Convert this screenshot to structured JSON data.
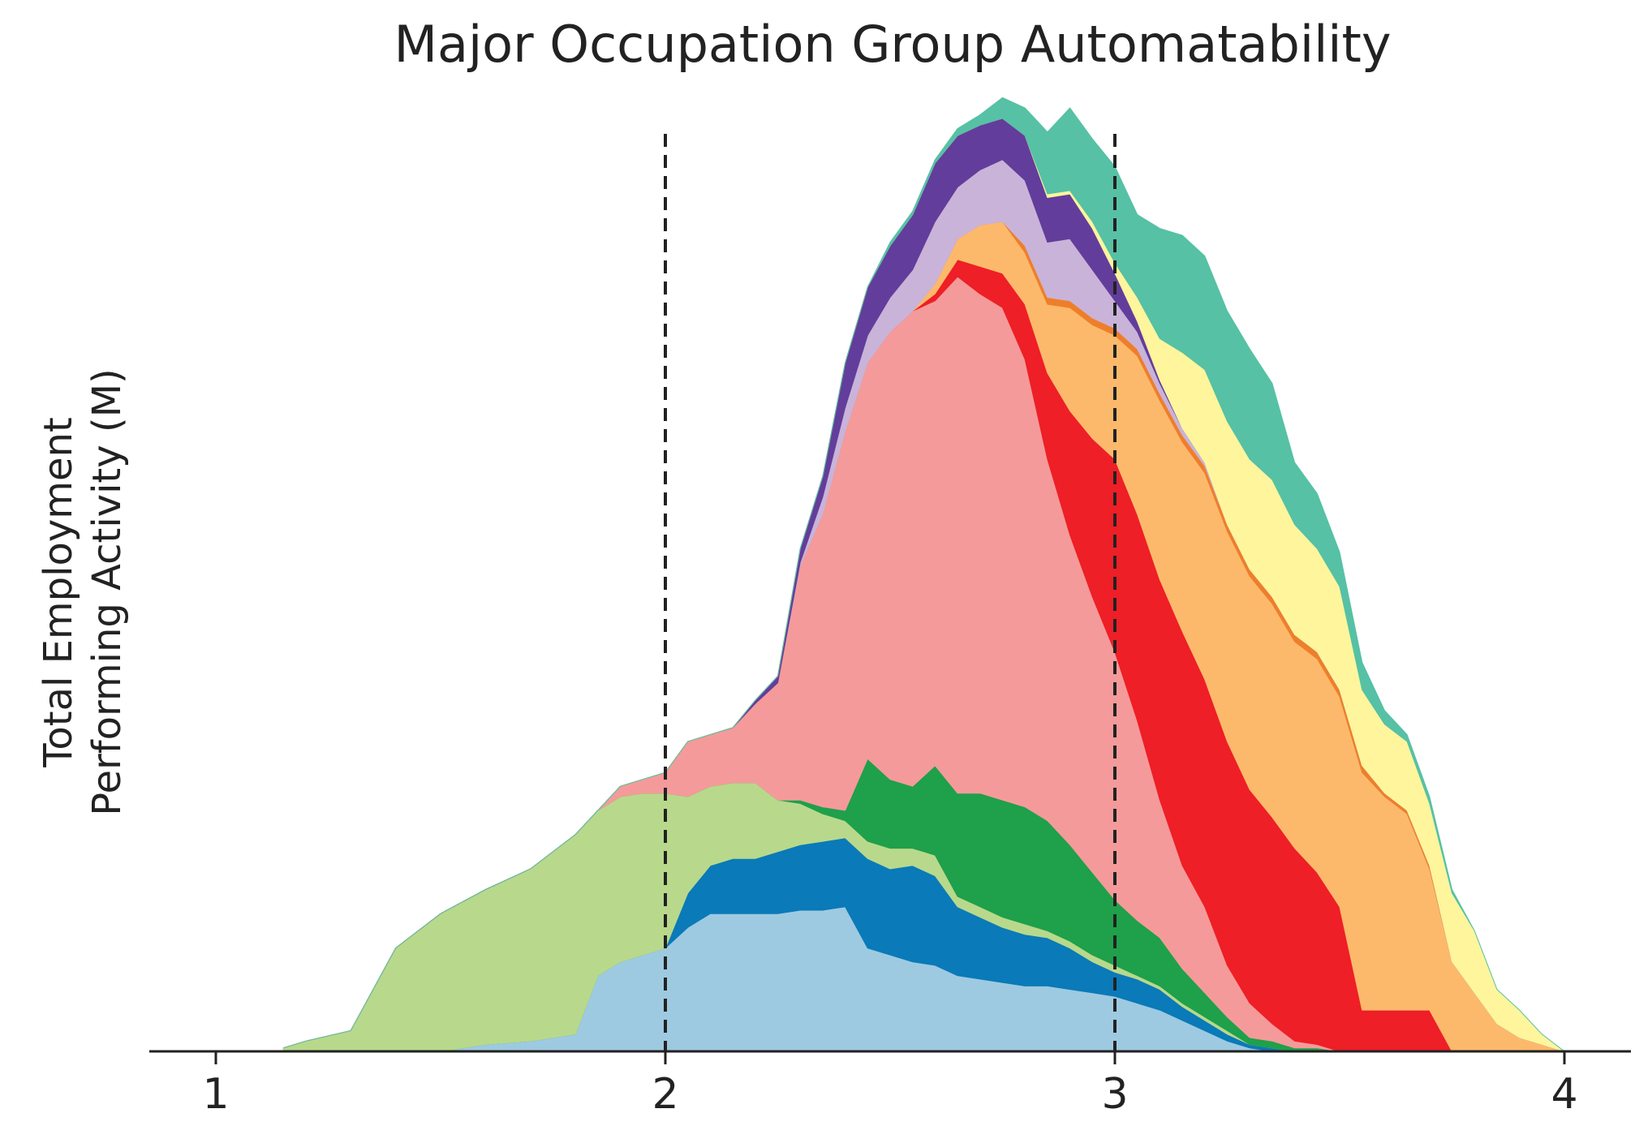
{
  "chart_data": {
    "type": "area",
    "stacked": true,
    "title": "Major Occupation Group Automatability",
    "xlabel": "",
    "ylabel_lines": [
      "Total Employment",
      "Performing Activity (M)"
    ],
    "xlim": [
      0.85,
      4.15
    ],
    "ylim": [
      0,
      27
    ],
    "x_ticks": [
      "1",
      "2",
      "3",
      "4"
    ],
    "x_tick_values": [
      1,
      2,
      3,
      4
    ],
    "y_ticks_shown": false,
    "grid": false,
    "legend": "none",
    "reference_lines": [
      2,
      3
    ],
    "x": [
      1.15,
      1.2,
      1.3,
      1.4,
      1.5,
      1.6,
      1.7,
      1.8,
      1.85,
      1.9,
      1.95,
      2.0,
      2.05,
      2.1,
      2.15,
      2.2,
      2.25,
      2.3,
      2.35,
      2.4,
      2.45,
      2.5,
      2.55,
      2.6,
      2.65,
      2.7,
      2.75,
      2.8,
      2.85,
      2.9,
      2.95,
      3.0,
      3.05,
      3.1,
      3.15,
      3.2,
      3.25,
      3.3,
      3.35,
      3.4,
      3.45,
      3.5,
      3.55,
      3.6,
      3.65,
      3.7,
      3.75,
      3.8,
      3.85,
      3.9,
      3.95,
      4.0
    ],
    "series": [
      {
        "color": "#9ecae1",
        "values": [
          0,
          0,
          0,
          0,
          0,
          0.2,
          0.3,
          0.5,
          2.2,
          2.6,
          2.8,
          3.0,
          3.6,
          4.0,
          4.0,
          4.0,
          4.0,
          4.1,
          4.1,
          4.2,
          3.0,
          2.8,
          2.6,
          2.5,
          2.2,
          2.1,
          2.0,
          1.9,
          1.9,
          1.8,
          1.7,
          1.6,
          1.4,
          1.2,
          0.9,
          0.6,
          0.3,
          0.1,
          0,
          0,
          0,
          0,
          0,
          0,
          0,
          0,
          0,
          0,
          0,
          0,
          0,
          0
        ]
      },
      {
        "color": "#0a7ab8",
        "values": [
          0,
          0,
          0,
          0,
          0,
          0,
          0,
          0,
          0,
          0,
          0,
          0,
          1.0,
          1.4,
          1.6,
          1.6,
          1.8,
          1.9,
          2.0,
          2.0,
          2.6,
          2.5,
          2.8,
          2.6,
          2.0,
          1.8,
          1.6,
          1.5,
          1.4,
          1.2,
          0.9,
          0.7,
          0.7,
          0.6,
          0.4,
          0.3,
          0.2,
          0.1,
          0.1,
          0,
          0,
          0,
          0,
          0,
          0,
          0,
          0,
          0,
          0,
          0,
          0,
          0
        ]
      },
      {
        "color": "#b8d98b",
        "values": [
          0.1,
          0.3,
          0.6,
          3.0,
          4.0,
          4.5,
          5.0,
          5.8,
          4.8,
          4.8,
          4.7,
          4.5,
          2.8,
          2.3,
          2.2,
          2.2,
          1.5,
          1.2,
          0.8,
          0.5,
          0.5,
          0.6,
          0.5,
          0.6,
          0.3,
          0.3,
          0.3,
          0.3,
          0.2,
          0.2,
          0.2,
          0.2,
          0.1,
          0.1,
          0.1,
          0.1,
          0.1,
          0,
          0,
          0,
          0,
          0,
          0,
          0,
          0,
          0,
          0,
          0,
          0,
          0,
          0,
          0
        ]
      },
      {
        "color": "#1fa04a",
        "values": [
          0,
          0,
          0,
          0,
          0,
          0,
          0,
          0,
          0,
          0,
          0,
          0,
          0,
          0,
          0,
          0,
          0,
          0.1,
          0.2,
          0.3,
          2.4,
          2.0,
          1.8,
          2.6,
          3.0,
          3.3,
          3.4,
          3.4,
          3.2,
          2.8,
          2.4,
          1.9,
          1.6,
          1.4,
          1.0,
          0.7,
          0.4,
          0.2,
          0.2,
          0.1,
          0.1,
          0,
          0,
          0,
          0,
          0,
          0,
          0,
          0,
          0,
          0,
          0
        ]
      },
      {
        "color": "#f59a9a",
        "values": [
          0,
          0,
          0,
          0,
          0,
          0,
          0,
          0,
          0,
          0.3,
          0.4,
          0.6,
          1.6,
          1.5,
          1.6,
          2.3,
          3.4,
          6.8,
          8.5,
          11.0,
          11.5,
          13.0,
          13.8,
          13.5,
          15.0,
          14.5,
          14.3,
          13.0,
          10.5,
          9.0,
          8.0,
          7.2,
          5.8,
          4.0,
          3.0,
          2.5,
          1.5,
          1.0,
          0.5,
          0.2,
          0.1,
          0,
          0,
          0,
          0,
          0,
          0,
          0,
          0,
          0,
          0,
          0
        ]
      },
      {
        "color": "#ee1f26",
        "values": [
          0,
          0,
          0,
          0,
          0,
          0,
          0,
          0,
          0,
          0,
          0,
          0,
          0,
          0,
          0,
          0,
          0,
          0,
          0,
          0,
          0,
          0,
          0,
          0.2,
          0.5,
          0.8,
          1.0,
          1.6,
          2.5,
          3.6,
          4.6,
          5.6,
          6.0,
          6.4,
          6.8,
          6.6,
          6.5,
          6.2,
          6.0,
          5.6,
          5.0,
          4.2,
          1.2,
          1.2,
          1.2,
          1.2,
          0,
          0,
          0,
          0,
          0,
          0
        ]
      },
      {
        "color": "#fcb96b",
        "values": [
          0,
          0,
          0,
          0,
          0,
          0,
          0,
          0,
          0,
          0,
          0,
          0,
          0,
          0,
          0,
          0,
          0,
          0,
          0,
          0,
          0,
          0,
          0,
          0.3,
          0.6,
          1.2,
          1.5,
          1.5,
          2.0,
          3.0,
          3.3,
          3.6,
          4.6,
          5.2,
          5.5,
          6.0,
          6.1,
          6.2,
          6.2,
          6.0,
          6.2,
          6.1,
          6.9,
          6.2,
          5.7,
          4.1,
          2.6,
          1.7,
          0.8,
          0.4,
          0.2,
          0
        ]
      },
      {
        "color": "#ef7e2a",
        "values": [
          0,
          0,
          0,
          0,
          0,
          0,
          0,
          0,
          0,
          0,
          0,
          0,
          0,
          0,
          0,
          0,
          0,
          0,
          0,
          0,
          0,
          0,
          0,
          0,
          0,
          0,
          0,
          0.2,
          0.2,
          0.2,
          0.2,
          0.2,
          0.2,
          0.2,
          0.2,
          0.2,
          0.2,
          0.2,
          0.2,
          0.2,
          0.2,
          0.2,
          0.2,
          0.1,
          0.1,
          0.1,
          0,
          0,
          0,
          0,
          0,
          0
        ]
      },
      {
        "color": "#c9b3d9",
        "values": [
          0,
          0,
          0,
          0,
          0,
          0,
          0,
          0,
          0,
          0,
          0,
          0,
          0,
          0,
          0,
          0,
          0,
          0.1,
          0.5,
          0.7,
          0.8,
          1.0,
          1.2,
          1.8,
          1.5,
          1.6,
          1.8,
          1.9,
          1.6,
          1.8,
          1.4,
          0.8,
          0.5,
          0.3,
          0.2,
          0.1,
          0,
          0,
          0,
          0,
          0,
          0,
          0,
          0,
          0,
          0,
          0,
          0,
          0,
          0,
          0,
          0
        ]
      },
      {
        "color": "#633d9b",
        "values": [
          0,
          0,
          0,
          0,
          0,
          0,
          0,
          0,
          0,
          0,
          0,
          0,
          0,
          0,
          0,
          0.1,
          0.2,
          0.4,
          0.6,
          1.3,
          1.4,
          1.5,
          1.6,
          1.7,
          1.5,
          1.3,
          1.2,
          1.3,
          1.3,
          1.3,
          1.2,
          0.8,
          0.3,
          0.1,
          0,
          0,
          0,
          0,
          0,
          0,
          0,
          0,
          0,
          0,
          0,
          0,
          0,
          0,
          0,
          0,
          0,
          0
        ]
      },
      {
        "color": "#fef59d",
        "values": [
          0,
          0,
          0,
          0,
          0,
          0,
          0,
          0,
          0,
          0,
          0,
          0,
          0,
          0,
          0,
          0,
          0,
          0,
          0,
          0,
          0,
          0,
          0,
          0,
          0,
          0,
          0,
          0,
          0.1,
          0.1,
          0.2,
          0.3,
          0.7,
          1.2,
          2.2,
          2.7,
          3.0,
          3.2,
          3.4,
          3.2,
          3.0,
          3.0,
          2.2,
          2.0,
          2.0,
          1.8,
          2.0,
          1.8,
          1.0,
          0.8,
          0.3,
          0
        ]
      },
      {
        "color": "#56c1a5",
        "values": [
          0,
          0,
          0,
          0,
          0,
          0,
          0,
          0,
          0,
          0,
          0,
          0,
          0,
          0,
          0,
          0,
          0,
          0,
          0,
          0,
          0,
          0.1,
          0.1,
          0.1,
          0.2,
          0.3,
          0.6,
          0.8,
          1.8,
          2.4,
          2.4,
          2.8,
          2.4,
          3.2,
          3.4,
          3.3,
          3.2,
          3.2,
          2.8,
          1.8,
          1.6,
          1.0,
          0.8,
          0.4,
          0.2,
          0.2,
          0.1,
          0,
          0,
          0,
          0,
          0
        ]
      }
    ]
  }
}
